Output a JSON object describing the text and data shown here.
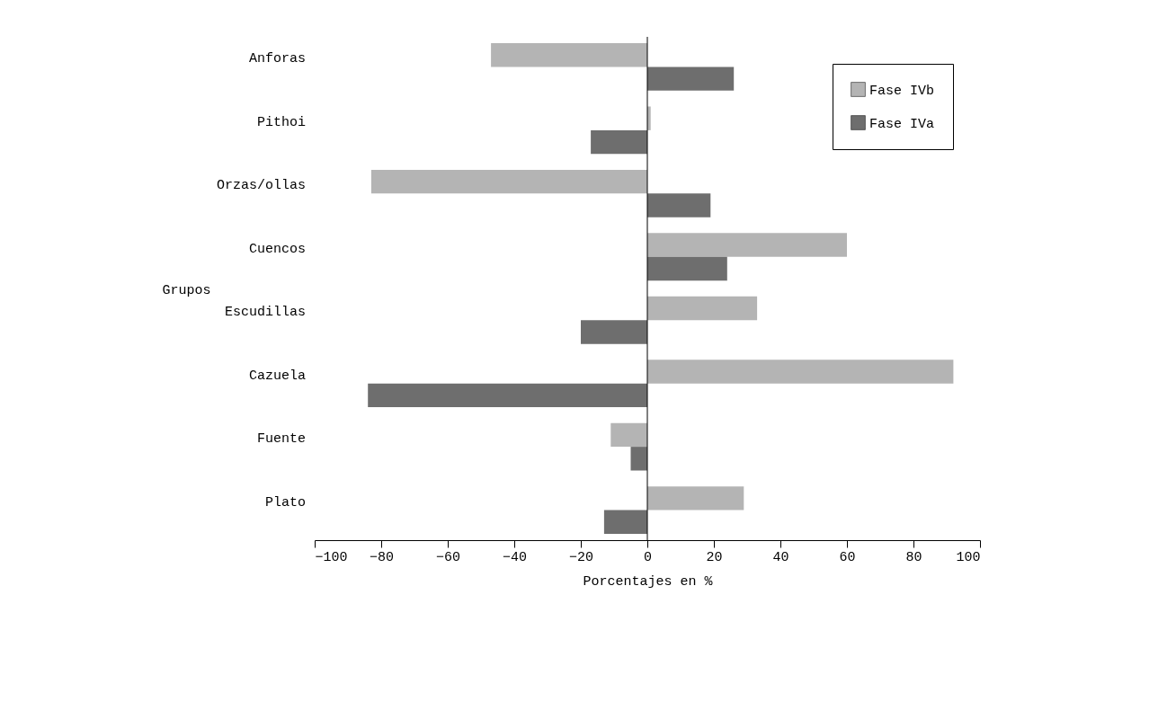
{
  "chart_data": {
    "type": "bar",
    "orientation": "horizontal",
    "xlabel": "Porcentajes en %",
    "ylabel": "Grupos",
    "categories": [
      "Anforas",
      "Pithoi",
      "Orzas/ollas",
      "Cuencos",
      "Escudillas",
      "Cazuela",
      "Fuente",
      "Plato"
    ],
    "series": [
      {
        "name": "Fase IVb",
        "color": "#b4b4b4",
        "values": [
          -47,
          1,
          -83,
          60,
          33,
          92,
          -11,
          29
        ]
      },
      {
        "name": "Fase IVa",
        "color": "#6e6e6e",
        "values": [
          26,
          -17,
          19,
          24,
          -20,
          -84,
          -5,
          -13
        ]
      }
    ],
    "xlim": [
      -100,
      100
    ],
    "xticks": [
      -100,
      -80,
      -60,
      -40,
      -20,
      0,
      20,
      40,
      60,
      80,
      100
    ],
    "ref_lines": [
      {
        "axis": "x",
        "value": 0
      }
    ],
    "grid": false,
    "legend": "top right"
  }
}
